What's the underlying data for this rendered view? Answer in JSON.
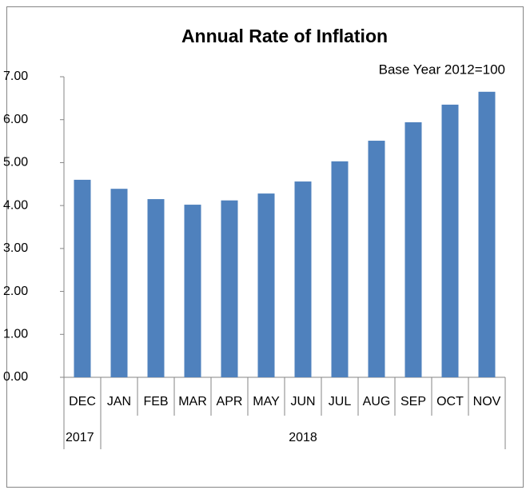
{
  "chart_data": {
    "type": "bar",
    "title": "Annual Rate of Inflation",
    "subtitle": "Base Year 2012=100",
    "categories": [
      "DEC",
      "JAN",
      "FEB",
      "MAR",
      "APR",
      "MAY",
      "JUN",
      "JUL",
      "AUG",
      "SEP",
      "OCT",
      "NOV"
    ],
    "years": [
      "2017",
      "2018",
      null,
      null,
      null,
      null,
      null,
      null,
      null,
      null,
      null,
      null
    ],
    "values": [
      4.6,
      4.39,
      4.15,
      4.02,
      4.12,
      4.28,
      4.56,
      5.03,
      5.51,
      5.94,
      6.35,
      6.65
    ],
    "color": "#4f81bd",
    "ylim": [
      0,
      7
    ],
    "yticks": [
      {
        "value": 0,
        "label": "0.00"
      },
      {
        "value": 1,
        "label": "1.00"
      },
      {
        "value": 2,
        "label": "2.00"
      },
      {
        "value": 3,
        "label": "3.00"
      },
      {
        "value": 4,
        "label": "4.00"
      },
      {
        "value": 5,
        "label": "5.00"
      },
      {
        "value": 6,
        "label": "6.00"
      },
      {
        "value": 7,
        "label": "7.00"
      }
    ],
    "grid": false
  }
}
